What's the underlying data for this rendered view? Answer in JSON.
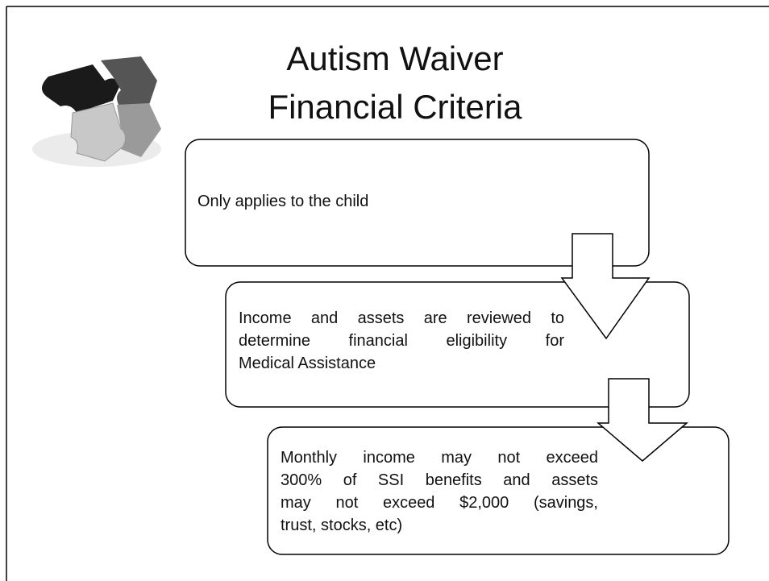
{
  "slide": {
    "title": [
      "Autism Waiver",
      "Financial Criteria"
    ],
    "steps": [
      {
        "lines": [
          "Only applies to the child"
        ]
      },
      {
        "lines": [
          "Income and assets are reviewed to",
          "determine financial eligibility for",
          "Medical Assistance"
        ]
      },
      {
        "lines": [
          "Monthly income may not exceed",
          "300% of SSI benefits and assets",
          "may not exceed $2,000  (savings,",
          "trust, stocks, etc)"
        ]
      }
    ]
  }
}
